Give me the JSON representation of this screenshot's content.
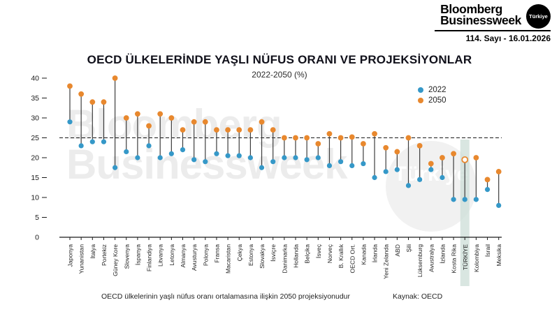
{
  "header": {
    "logo_line1": "Bloomberg",
    "logo_line2": "Businessweek",
    "logo_badge": "Türkiye",
    "issue": "114. Sayı - 16.01.2026"
  },
  "chart": {
    "title": "OECD ÜLKELERİNDE YAŞLI NÜFUS ORANI VE PROJEKSİYONLAR",
    "subtitle": "2022-2050 (%)"
  },
  "watermark": {
    "line1": "Bloomberg",
    "line2": "Businessweek",
    "badge": "Türkiye"
  },
  "footer": {
    "note": "OECD ülkelerinin yaşlı nüfus oranı ortalamasına ilişkin 2050 projeksiyonudur",
    "source": "Kaynak: OECD"
  },
  "chart_data": {
    "type": "lollipop dot-range plot",
    "title": "OECD ÜLKELERİNDE YAŞLI NÜFUS ORANI VE PROJEKSİYONLAR",
    "subtitle": "2022-2050 (%)",
    "categories": [
      "Japonya",
      "Yunanistan",
      "İtalya",
      "Portekiz",
      "Güney Kore",
      "Slovenya",
      "İspanya",
      "Finlandiya",
      "Litvanya",
      "Letonya",
      "Almanya",
      "Avusturya",
      "Polonya",
      "Fransa",
      "Macaristan",
      "Çekya",
      "Estonya",
      "Slovakya",
      "İsviçre",
      "Danimarka",
      "Hollanda",
      "Belçika",
      "İsveç",
      "Norveç",
      "B. Krallık",
      "OECD Ort.",
      "Kanada",
      "İrlanda",
      "Yeni Zelanda",
      "ABD",
      "Şili",
      "Lüksemburg",
      "Avustralya",
      "İzlanda",
      "Kosta Rika",
      "TÜRKİYE",
      "Kolombiya",
      "İsrail",
      "Meksika"
    ],
    "series": [
      {
        "name": "2022",
        "color": "#3598c8",
        "values": [
          29,
          23,
          24,
          24,
          17.5,
          21.5,
          20,
          23,
          20,
          21,
          22,
          19.5,
          19,
          21,
          20.5,
          20.5,
          20,
          17.5,
          19,
          20,
          20,
          19.5,
          20,
          18,
          19,
          18,
          18.5,
          15,
          16.5,
          17,
          13,
          14.5,
          17,
          15,
          9.5,
          9.5,
          9.5,
          12,
          8
        ]
      },
      {
        "name": "2050",
        "color": "#e8882e",
        "values": [
          38,
          36,
          34,
          34,
          40,
          30,
          31,
          28,
          31,
          30,
          27,
          29,
          29,
          27,
          27,
          27,
          27,
          29,
          27,
          25,
          25,
          25,
          23.5,
          26,
          25,
          25.2,
          23.5,
          26,
          22.5,
          21.5,
          25,
          23,
          18.5,
          20,
          21,
          19.5,
          20,
          14.5,
          16.5
        ]
      }
    ],
    "ylim": [
      0,
      40
    ],
    "yticks": [
      0,
      5,
      10,
      15,
      20,
      25,
      30,
      35,
      40
    ],
    "reference_line": {
      "value": 25,
      "style": "dashed",
      "meaning": "OECD ülkelerinin yaşlı nüfus oranı ortalamasına ilişkin 2050 projeksiyonu"
    },
    "highlight": {
      "category": "TÜRKİYE",
      "band_color": "#cfe0da",
      "open_marker_series": "2050"
    },
    "legend_position": "top-right",
    "grid": false,
    "xlabel": "",
    "ylabel": ""
  }
}
